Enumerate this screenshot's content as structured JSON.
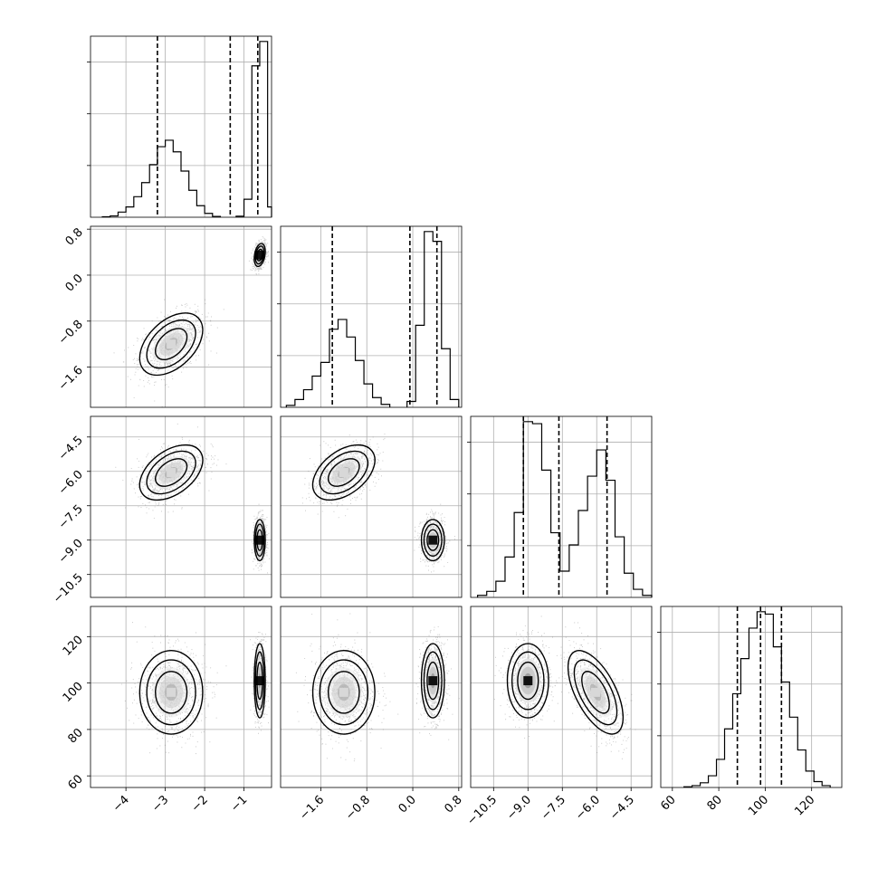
{
  "chart_data": {
    "type": "corner",
    "grid": true,
    "parameters": [
      {
        "range": [
          -4.9,
          -0.3
        ],
        "ticks": [
          -4,
          -3,
          -2,
          -1
        ],
        "tick_labels": [
          "−4",
          "−3",
          "−2",
          "−1"
        ],
        "quantiles": [
          -3.2,
          -1.35,
          -0.65
        ]
      },
      {
        "range": [
          -2.3,
          0.85
        ],
        "ticks": [
          -1.6,
          -0.8,
          0.0,
          0.8
        ],
        "tick_labels": [
          "−1.6",
          "−0.8",
          "0.0",
          "0.8"
        ],
        "quantiles": [
          -1.4,
          -0.05,
          0.42
        ]
      },
      {
        "range": [
          -11.5,
          -3.6
        ],
        "ticks": [
          -10.5,
          -9.0,
          -7.5,
          -6.0,
          -4.5
        ],
        "tick_labels": [
          "−10.5",
          "−9.0",
          "−7.5",
          "−6.0",
          "−4.5"
        ],
        "quantiles": [
          -9.2,
          -7.65,
          -5.55
        ]
      },
      {
        "range": [
          55,
          133
        ],
        "ticks": [
          60,
          80,
          100,
          120
        ],
        "tick_labels": [
          "60",
          "80",
          "100",
          "120"
        ],
        "quantiles": [
          88,
          98,
          107
        ]
      }
    ],
    "histograms": [
      {
        "param": 0,
        "bins": [
          [
            -4.6,
            -4.4,
            0.4
          ],
          [
            -4.4,
            -4.2,
            1
          ],
          [
            -4.2,
            -4.0,
            4
          ],
          [
            -4.0,
            -3.8,
            8
          ],
          [
            -3.8,
            -3.6,
            16
          ],
          [
            -3.6,
            -3.4,
            27
          ],
          [
            -3.4,
            -3.2,
            41
          ],
          [
            -3.2,
            -3.0,
            55
          ],
          [
            -3.0,
            -2.8,
            60
          ],
          [
            -2.8,
            -2.6,
            51
          ],
          [
            -2.6,
            -2.4,
            36
          ],
          [
            -2.4,
            -2.2,
            21
          ],
          [
            -2.2,
            -2.0,
            9
          ],
          [
            -2.0,
            -1.8,
            3
          ],
          [
            -1.8,
            -1.6,
            0.6
          ],
          [
            -1.2,
            -1.0,
            0.8
          ],
          [
            -1.0,
            -0.8,
            14
          ],
          [
            -0.8,
            -0.6,
            118
          ],
          [
            -0.6,
            -0.4,
            137
          ],
          [
            -0.4,
            -0.3,
            8
          ]
        ]
      },
      {
        "param": 1,
        "bins": [
          [
            -2.2,
            -2.05,
            1
          ],
          [
            -2.05,
            -1.9,
            4
          ],
          [
            -1.9,
            -1.75,
            9
          ],
          [
            -1.75,
            -1.6,
            16
          ],
          [
            -1.6,
            -1.45,
            23
          ],
          [
            -1.45,
            -1.3,
            40
          ],
          [
            -1.3,
            -1.15,
            45
          ],
          [
            -1.15,
            -1.0,
            36
          ],
          [
            -1.0,
            -0.85,
            24
          ],
          [
            -0.85,
            -0.7,
            12
          ],
          [
            -0.7,
            -0.55,
            5
          ],
          [
            -0.55,
            -0.4,
            1.5
          ],
          [
            -0.1,
            0.05,
            3
          ],
          [
            0.05,
            0.2,
            42
          ],
          [
            0.2,
            0.35,
            90
          ],
          [
            0.35,
            0.5,
            85
          ],
          [
            0.5,
            0.65,
            30
          ],
          [
            0.65,
            0.8,
            4
          ]
        ]
      },
      {
        "param": 2,
        "bins": [
          [
            -11.2,
            -10.8,
            1
          ],
          [
            -10.8,
            -10.4,
            3
          ],
          [
            -10.4,
            -10.0,
            8
          ],
          [
            -10.0,
            -9.6,
            20
          ],
          [
            -9.6,
            -9.2,
            42
          ],
          [
            -9.2,
            -8.8,
            87
          ],
          [
            -8.8,
            -8.4,
            86
          ],
          [
            -8.4,
            -8.0,
            63
          ],
          [
            -8.0,
            -7.6,
            32
          ],
          [
            -7.6,
            -7.2,
            13
          ],
          [
            -7.2,
            -6.8,
            26
          ],
          [
            -6.8,
            -6.4,
            43
          ],
          [
            -6.4,
            -6.0,
            60
          ],
          [
            -6.0,
            -5.6,
            73
          ],
          [
            -5.6,
            -5.2,
            58
          ],
          [
            -5.2,
            -4.8,
            30
          ],
          [
            -4.8,
            -4.4,
            12
          ],
          [
            -4.4,
            -4.0,
            4
          ],
          [
            -4.0,
            -3.6,
            1
          ]
        ]
      },
      {
        "param": 3,
        "bins": [
          [
            65,
            68.5,
            0.3
          ],
          [
            68.5,
            72,
            0.8
          ],
          [
            72,
            75.5,
            2
          ],
          [
            75.5,
            79,
            5
          ],
          [
            79,
            82.5,
            12
          ],
          [
            82.5,
            86,
            25
          ],
          [
            86,
            89.5,
            40
          ],
          [
            89.5,
            93,
            55
          ],
          [
            93,
            96.5,
            68
          ],
          [
            96.5,
            100,
            75
          ],
          [
            100,
            103.5,
            74
          ],
          [
            103.5,
            107,
            60
          ],
          [
            107,
            110.5,
            45
          ],
          [
            110.5,
            114,
            30
          ],
          [
            114,
            117.5,
            16
          ],
          [
            117.5,
            121,
            7
          ],
          [
            121,
            124.5,
            2.5
          ],
          [
            124.5,
            128,
            0.8
          ]
        ]
      }
    ],
    "modes": [
      [
        -2.85,
        -1.2,
        -6.05,
        96
      ],
      [
        -0.6,
        0.35,
        -9.0,
        101
      ]
    ],
    "mode_spreads": [
      [
        0.4,
        0.27,
        0.6,
        9
      ],
      [
        0.07,
        0.1,
        0.45,
        8
      ]
    ],
    "correlations": [
      {
        "pair": [
          1,
          0
        ],
        "modes": [
          0.45,
          0.3
        ]
      },
      {
        "pair": [
          2,
          0
        ],
        "modes": [
          0.45,
          0.0
        ]
      },
      {
        "pair": [
          3,
          0
        ],
        "modes": [
          0.0,
          0.0
        ]
      },
      {
        "pair": [
          2,
          1
        ],
        "modes": [
          0.45,
          0.0
        ]
      },
      {
        "pair": [
          3,
          1
        ],
        "modes": [
          0.0,
          0.0
        ]
      },
      {
        "pair": [
          3,
          2
        ],
        "modes": [
          -0.6,
          0.0
        ]
      }
    ]
  }
}
